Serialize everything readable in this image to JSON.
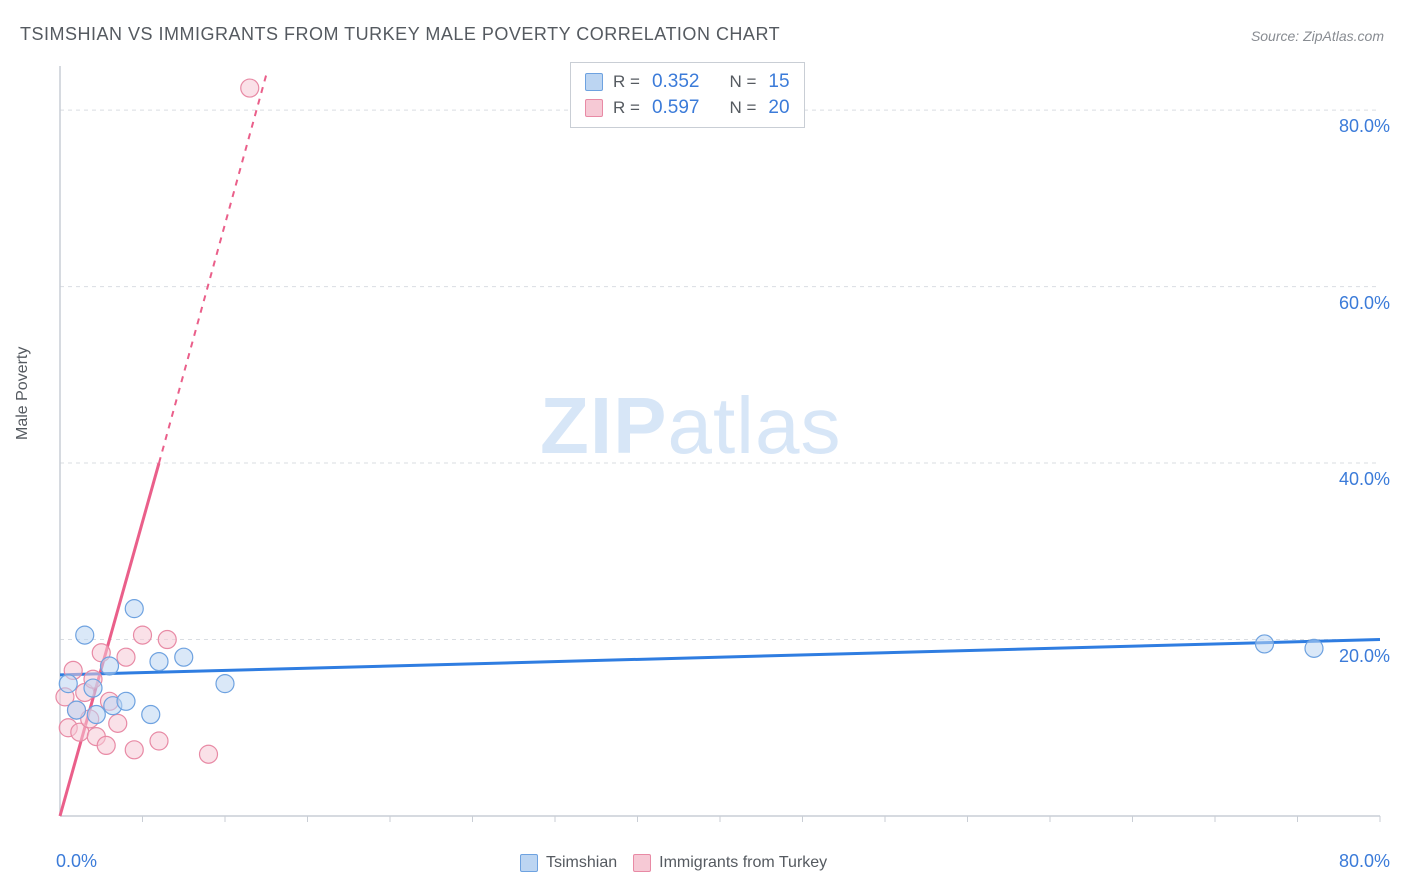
{
  "title": "TSIMSHIAN VS IMMIGRANTS FROM TURKEY MALE POVERTY CORRELATION CHART",
  "source": "Source: ZipAtlas.com",
  "ylabel": "Male Poverty",
  "watermark": {
    "prefix": "ZIP",
    "suffix": "atlas",
    "color": "#d7e6f7"
  },
  "chart": {
    "type": "scatter",
    "xlim": [
      0,
      80
    ],
    "ylim": [
      0,
      85
    ],
    "x_origin_label": "0.0%",
    "x_max_label": "80.0%",
    "y_ticks": [
      20,
      40,
      60,
      80
    ],
    "y_tick_labels": [
      "20.0%",
      "40.0%",
      "60.0%",
      "80.0%"
    ],
    "x_minor_ticks": [
      5,
      10,
      15,
      20,
      25,
      30,
      35,
      40,
      45,
      50,
      55,
      60,
      65,
      70,
      75,
      80
    ],
    "grid_color": "#d9dde2",
    "axis_color": "#c9ced5",
    "tick_label_color": "#3b7bd9",
    "background_color": "#ffffff",
    "marker_radius": 9,
    "marker_stroke_width": 1.2,
    "line_width_solid": 3,
    "line_width_dash": 2,
    "dash_pattern": "6,6",
    "series": [
      {
        "name": "Tsimshian",
        "color_fill": "#bcd5f2",
        "color_stroke": "#6ea2e0",
        "line_color": "#2f7de1",
        "r": "0.352",
        "n": "15",
        "points": [
          [
            0.5,
            15.0
          ],
          [
            1.0,
            12.0
          ],
          [
            1.5,
            20.5
          ],
          [
            2.0,
            14.5
          ],
          [
            2.2,
            11.5
          ],
          [
            3.0,
            17.0
          ],
          [
            3.2,
            12.5
          ],
          [
            4.0,
            13.0
          ],
          [
            4.5,
            23.5
          ],
          [
            5.5,
            11.5
          ],
          [
            6.0,
            17.5
          ],
          [
            7.5,
            18.0
          ],
          [
            10.0,
            15.0
          ],
          [
            73.0,
            19.5
          ],
          [
            76.0,
            19.0
          ]
        ],
        "trend": {
          "x1": 0,
          "y1": 16.0,
          "x2": 80,
          "y2": 20.0
        }
      },
      {
        "name": "Immigrants from Turkey",
        "color_fill": "#f6c9d5",
        "color_stroke": "#e88aa5",
        "line_color": "#ea5f8a",
        "r": "0.597",
        "n": "20",
        "points": [
          [
            0.3,
            13.5
          ],
          [
            0.5,
            10.0
          ],
          [
            0.8,
            16.5
          ],
          [
            1.0,
            12.0
          ],
          [
            1.2,
            9.5
          ],
          [
            1.5,
            14.0
          ],
          [
            1.8,
            11.0
          ],
          [
            2.0,
            15.5
          ],
          [
            2.2,
            9.0
          ],
          [
            2.5,
            18.5
          ],
          [
            2.8,
            8.0
          ],
          [
            3.0,
            13.0
          ],
          [
            3.5,
            10.5
          ],
          [
            4.0,
            18.0
          ],
          [
            4.5,
            7.5
          ],
          [
            5.0,
            20.5
          ],
          [
            6.0,
            8.5
          ],
          [
            6.5,
            20.0
          ],
          [
            9.0,
            7.0
          ],
          [
            11.5,
            82.5
          ]
        ],
        "trend_solid": {
          "x1": 0,
          "y1": 0.0,
          "x2": 6.0,
          "y2": 40.0
        },
        "trend_dash": {
          "x1": 6.0,
          "y1": 40.0,
          "x2": 12.5,
          "y2": 84.0
        }
      }
    ]
  },
  "legend_stats": {
    "r_label": "R =",
    "n_label": "N ="
  },
  "bottom_legend": {
    "items": [
      "Tsimshian",
      "Immigrants from Turkey"
    ]
  }
}
